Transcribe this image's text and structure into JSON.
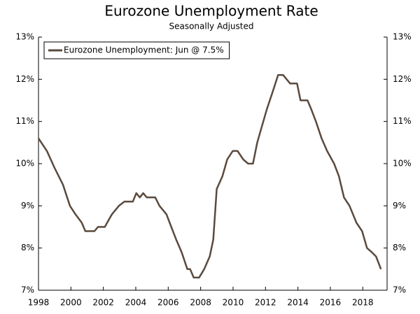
{
  "chart_data": {
    "type": "line",
    "title": "Eurozone Unemployment Rate",
    "subtitle": "Seasonally Adjusted",
    "x": [
      1998.0,
      1998.52,
      1998.99,
      1999.51,
      1999.94,
      2000.28,
      2000.67,
      2000.89,
      2001.45,
      2001.67,
      2002.09,
      2002.53,
      2002.96,
      2003.3,
      2003.82,
      2004.03,
      2004.25,
      2004.46,
      2004.68,
      2005.2,
      2005.46,
      2005.89,
      2006.19,
      2006.49,
      2006.83,
      2007.18,
      2007.35,
      2007.57,
      2007.91,
      2008.22,
      2008.56,
      2008.78,
      2008.99,
      2009.34,
      2009.64,
      2009.98,
      2010.28,
      2010.63,
      2010.93,
      2011.23,
      2011.49,
      2011.79,
      2012.09,
      2012.44,
      2012.78,
      2013.09,
      2013.52,
      2013.95,
      2014.16,
      2014.59,
      2014.81,
      2015.11,
      2015.46,
      2015.8,
      2016.23,
      2016.53,
      2016.84,
      2017.18,
      2017.61,
      2017.96,
      2018.26,
      2018.56,
      2018.82,
      2019.12
    ],
    "series": [
      {
        "name": "Eurozone Unemployment: Jun @ 7.5%",
        "color": "#5a4a3e",
        "values": [
          10.6,
          10.3,
          9.9,
          9.5,
          9.0,
          8.8,
          8.6,
          8.4,
          8.4,
          8.5,
          8.5,
          8.8,
          9.0,
          9.1,
          9.1,
          9.3,
          9.2,
          9.3,
          9.2,
          9.2,
          9.0,
          8.8,
          8.5,
          8.2,
          7.9,
          7.5,
          7.5,
          7.3,
          7.3,
          7.5,
          7.8,
          8.2,
          9.4,
          9.7,
          10.1,
          10.3,
          10.3,
          10.1,
          10.0,
          10.0,
          10.5,
          10.9,
          11.3,
          11.7,
          12.1,
          12.1,
          11.9,
          11.9,
          11.5,
          11.5,
          11.3,
          11.0,
          10.6,
          10.3,
          10.0,
          9.7,
          9.2,
          9.0,
          8.6,
          8.4,
          8.0,
          7.9,
          7.8,
          7.5
        ]
      }
    ],
    "xlim": [
      1998,
      2019.5
    ],
    "xticks": [
      1998,
      2000,
      2002,
      2004,
      2006,
      2008,
      2010,
      2012,
      2014,
      2016,
      2018
    ],
    "ylim": [
      7,
      13
    ],
    "yticks": [
      {
        "value": 7,
        "label": "7%"
      },
      {
        "value": 8,
        "label": "8%"
      },
      {
        "value": 9,
        "label": "9%"
      },
      {
        "value": 10,
        "label": "10%"
      },
      {
        "value": 11,
        "label": "11%"
      },
      {
        "value": 12,
        "label": "12%"
      },
      {
        "value": 13,
        "label": "13%"
      }
    ],
    "y2lim": [
      7,
      13
    ],
    "y2ticks": [
      {
        "value": 7,
        "label": "7%"
      },
      {
        "value": 8,
        "label": "8%"
      },
      {
        "value": 9,
        "label": "9%"
      },
      {
        "value": 10,
        "label": "10%"
      },
      {
        "value": 11,
        "label": "11%"
      },
      {
        "value": 12,
        "label": "12%"
      },
      {
        "value": 13,
        "label": "13%"
      }
    ],
    "legend": "top-left"
  }
}
